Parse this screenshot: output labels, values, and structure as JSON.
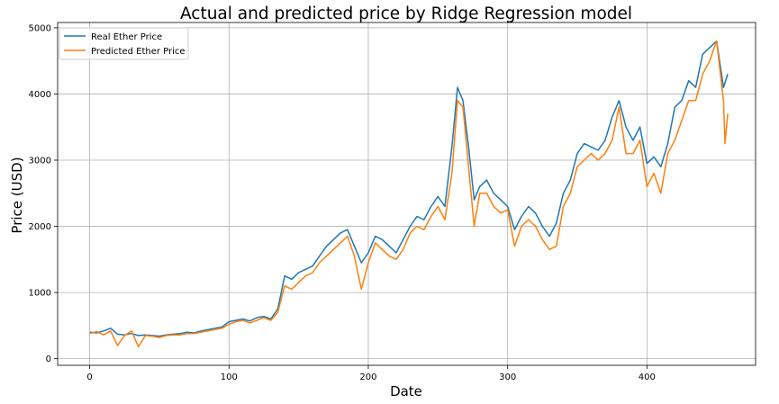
{
  "chart_data": {
    "type": "line",
    "title": "Actual and predicted price by Ridge Regression model",
    "xlabel": "Date",
    "ylabel": "Price (USD)",
    "xlim": [
      -23,
      478
    ],
    "ylim": [
      -100,
      5080
    ],
    "xticks": [
      0,
      100,
      200,
      300,
      400
    ],
    "yticks": [
      0,
      1000,
      2000,
      3000,
      4000,
      5000
    ],
    "grid": true,
    "legend": "top-left",
    "series": [
      {
        "name": "Real Ether Price",
        "color": "#1f77b4",
        "x": [
          0,
          5,
          10,
          15,
          20,
          25,
          30,
          35,
          40,
          45,
          50,
          55,
          60,
          65,
          70,
          75,
          80,
          85,
          90,
          95,
          100,
          105,
          110,
          115,
          120,
          125,
          130,
          135,
          140,
          145,
          150,
          155,
          160,
          165,
          170,
          175,
          180,
          185,
          190,
          195,
          200,
          205,
          210,
          215,
          220,
          225,
          230,
          235,
          240,
          245,
          250,
          255,
          260,
          264,
          268,
          272,
          276,
          280,
          285,
          290,
          295,
          300,
          305,
          310,
          315,
          320,
          325,
          330,
          335,
          340,
          345,
          350,
          355,
          360,
          365,
          370,
          375,
          380,
          385,
          390,
          395,
          400,
          405,
          410,
          415,
          420,
          425,
          430,
          435,
          440,
          445,
          450,
          455,
          458
        ],
        "values": [
          400,
          390,
          420,
          460,
          370,
          360,
          380,
          350,
          360,
          350,
          340,
          360,
          370,
          380,
          400,
          390,
          420,
          440,
          460,
          480,
          560,
          580,
          600,
          570,
          620,
          640,
          600,
          750,
          1250,
          1200,
          1300,
          1350,
          1400,
          1550,
          1700,
          1800,
          1900,
          1950,
          1700,
          1450,
          1600,
          1850,
          1800,
          1700,
          1600,
          1800,
          2000,
          2150,
          2100,
          2300,
          2450,
          2300,
          3200,
          4100,
          3900,
          3200,
          2400,
          2600,
          2700,
          2500,
          2400,
          2300,
          1950,
          2150,
          2300,
          2200,
          2000,
          1850,
          2050,
          2500,
          2700,
          3100,
          3250,
          3200,
          3150,
          3300,
          3650,
          3900,
          3500,
          3300,
          3500,
          2950,
          3050,
          2900,
          3250,
          3800,
          3900,
          4200,
          4100,
          4600,
          4700,
          4800,
          4100,
          4300
        ]
      },
      {
        "name": "Predicted Ether Price",
        "color": "#ff7f0e",
        "x": [
          0,
          5,
          10,
          15,
          20,
          25,
          30,
          35,
          40,
          45,
          50,
          55,
          60,
          65,
          70,
          75,
          80,
          85,
          90,
          95,
          100,
          105,
          110,
          115,
          120,
          125,
          130,
          135,
          140,
          145,
          150,
          155,
          160,
          165,
          170,
          175,
          180,
          185,
          190,
          195,
          200,
          205,
          210,
          215,
          220,
          225,
          230,
          235,
          240,
          245,
          250,
          255,
          260,
          264,
          268,
          272,
          276,
          280,
          285,
          290,
          295,
          300,
          305,
          310,
          315,
          320,
          325,
          330,
          335,
          340,
          345,
          350,
          355,
          360,
          365,
          370,
          375,
          380,
          385,
          390,
          395,
          400,
          405,
          410,
          415,
          420,
          425,
          430,
          435,
          440,
          445,
          450,
          455,
          456,
          458
        ],
        "values": [
          380,
          410,
          360,
          420,
          200,
          350,
          420,
          180,
          350,
          340,
          320,
          350,
          360,
          360,
          380,
          380,
          400,
          420,
          440,
          460,
          520,
          560,
          580,
          540,
          580,
          620,
          580,
          700,
          1100,
          1050,
          1150,
          1250,
          1300,
          1450,
          1550,
          1650,
          1750,
          1850,
          1550,
          1050,
          1450,
          1750,
          1650,
          1550,
          1500,
          1650,
          1900,
          2000,
          1950,
          2150,
          2300,
          2100,
          2800,
          3900,
          3800,
          2900,
          2000,
          2500,
          2500,
          2300,
          2200,
          2250,
          1700,
          2000,
          2100,
          2000,
          1800,
          1650,
          1700,
          2300,
          2500,
          2900,
          3000,
          3100,
          3000,
          3100,
          3300,
          3800,
          3100,
          3100,
          3300,
          2600,
          2800,
          2500,
          3100,
          3300,
          3600,
          3900,
          3900,
          4300,
          4500,
          4800,
          3900,
          3250,
          3700
        ]
      }
    ]
  }
}
